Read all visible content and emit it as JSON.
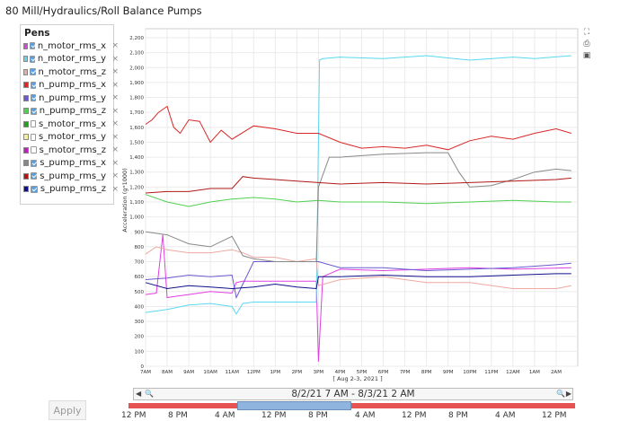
{
  "page": {
    "title": "80 Mill/Hydraulics/Roll Balance Pumps"
  },
  "pens": {
    "title": "Pens",
    "items": [
      {
        "name": "n_motor_rms_x",
        "color": "#e040e0",
        "checked": true
      },
      {
        "name": "n_motor_rms_y",
        "color": "#5ad8f0",
        "checked": true
      },
      {
        "name": "n_motor_rms_z",
        "color": "#f0a8a0",
        "checked": true
      },
      {
        "name": "n_pump_rms_x",
        "color": "#d82828",
        "checked": true
      },
      {
        "name": "n_pump_rms_y",
        "color": "#6a5ad0",
        "checked": true
      },
      {
        "name": "n_pump_rms_z",
        "color": "#50d050",
        "checked": true
      },
      {
        "name": "s_motor_rms_x",
        "color": "#22a022",
        "checked": false
      },
      {
        "name": "s_motor_rms_y",
        "color": "#f0f0a0",
        "checked": false
      },
      {
        "name": "s_motor_rms_z",
        "color": "#c020c0",
        "checked": false
      },
      {
        "name": "s_pump_rms_x",
        "color": "#888888",
        "checked": true
      },
      {
        "name": "s_pump_rms_y",
        "color": "#b01818",
        "checked": true
      },
      {
        "name": "s_pump_rms_z",
        "color": "#10108a",
        "checked": true
      }
    ],
    "remove_icon": "×"
  },
  "toolbar": {
    "icons": [
      "fullscreen-icon",
      "print-icon",
      "save-icon"
    ]
  },
  "chart_data": {
    "type": "line",
    "ylabel": "Acceleration (g*1000)",
    "xlabel": "[ Aug 2-3, 2021 ]",
    "ylim": [
      0,
      2200
    ],
    "yticks": [
      0,
      100,
      200,
      300,
      400,
      500,
      600,
      700,
      800,
      900,
      1000,
      1100,
      1200,
      1300,
      1400,
      1500,
      1600,
      1700,
      1800,
      1900,
      2000,
      2100,
      2200
    ],
    "ytick_labels": [
      "0",
      "100",
      "200",
      "300",
      "400",
      "500",
      "600",
      "700",
      "800",
      "900",
      "1,000",
      "1,100",
      "1,200",
      "1,300",
      "1,400",
      "1,500",
      "1,600",
      "1,700",
      "1,800",
      "1,900",
      "2,000",
      "2,100",
      "2,200"
    ],
    "xticks": [
      "7AM",
      "8AM",
      "9AM",
      "10AM",
      "11AM",
      "12PM",
      "1PM",
      "2PM",
      "3PM",
      "4PM",
      "5PM",
      "6PM",
      "7PM",
      "8PM",
      "9PM",
      "10PM",
      "11PM",
      "12AM",
      "1AM",
      "2AM"
    ],
    "xlim_hours": [
      7,
      27
    ],
    "grid": true,
    "series": [
      {
        "name": "n_motor_rms_x",
        "color": "#e040e0",
        "x": [
          7,
          7.5,
          7.8,
          8,
          8.5,
          9,
          10,
          11,
          11.2,
          11.5,
          12,
          13,
          14,
          14.9,
          15,
          15.2,
          16,
          18,
          20,
          22,
          24,
          26.7
        ],
        "values": [
          480,
          490,
          880,
          460,
          470,
          480,
          500,
          490,
          560,
          570,
          570,
          570,
          570,
          570,
          30,
          600,
          650,
          640,
          650,
          660,
          650,
          660
        ]
      },
      {
        "name": "n_motor_rms_y",
        "color": "#5ad8f0",
        "x": [
          7,
          8,
          9,
          10,
          11,
          11.2,
          11.5,
          12,
          13,
          14,
          14.9,
          15.05,
          15.2,
          16,
          18,
          20,
          22,
          24,
          25,
          26.7
        ],
        "values": [
          360,
          380,
          410,
          420,
          400,
          350,
          420,
          430,
          430,
          430,
          430,
          2050,
          2060,
          2070,
          2060,
          2080,
          2050,
          2070,
          2060,
          2080
        ]
      },
      {
        "name": "n_motor_rms_z",
        "color": "#f0a8a0",
        "x": [
          7,
          7.5,
          8,
          9,
          10,
          11,
          11.5,
          12,
          13,
          14,
          14.9,
          15,
          16,
          18,
          20,
          22,
          24,
          26,
          26.7
        ],
        "values": [
          750,
          800,
          780,
          760,
          760,
          780,
          760,
          730,
          730,
          700,
          720,
          540,
          580,
          600,
          560,
          560,
          520,
          520,
          540
        ]
      },
      {
        "name": "n_pump_rms_x",
        "color": "#d82828",
        "x": [
          7,
          7.3,
          7.6,
          8,
          8.3,
          8.6,
          9,
          9.5,
          10,
          10.5,
          11,
          12,
          13,
          14,
          15,
          16,
          17,
          18,
          19,
          20,
          21,
          22,
          23,
          24,
          25,
          26,
          26.7
        ],
        "values": [
          1620,
          1650,
          1700,
          1740,
          1600,
          1560,
          1650,
          1640,
          1500,
          1580,
          1520,
          1610,
          1590,
          1560,
          1560,
          1500,
          1460,
          1470,
          1460,
          1480,
          1450,
          1510,
          1540,
          1520,
          1560,
          1590,
          1560
        ]
      },
      {
        "name": "n_pump_rms_y",
        "color": "#6a5ad0",
        "x": [
          7,
          8,
          9,
          10,
          11,
          11.2,
          12,
          13,
          14,
          15,
          16,
          18,
          20,
          22,
          24,
          26,
          26.7
        ],
        "values": [
          580,
          590,
          610,
          600,
          610,
          460,
          700,
          700,
          700,
          700,
          660,
          660,
          640,
          650,
          660,
          680,
          690
        ]
      },
      {
        "name": "n_pump_rms_z",
        "color": "#50d050",
        "x": [
          7,
          8,
          9,
          10,
          11,
          12,
          13,
          14,
          15,
          16,
          18,
          20,
          22,
          24,
          26,
          26.7
        ],
        "values": [
          1150,
          1100,
          1070,
          1100,
          1120,
          1130,
          1120,
          1100,
          1110,
          1100,
          1100,
          1090,
          1100,
          1110,
          1100,
          1100
        ]
      },
      {
        "name": "s_pump_rms_x",
        "color": "#888888",
        "x": [
          7,
          8,
          9,
          10,
          11,
          11.5,
          12,
          13,
          14,
          14.9,
          15,
          15.5,
          16,
          18,
          20,
          21,
          21.5,
          22,
          23,
          24,
          25,
          26,
          26.7
        ],
        "values": [
          900,
          880,
          820,
          800,
          870,
          740,
          720,
          700,
          700,
          700,
          1200,
          1400,
          1400,
          1420,
          1430,
          1430,
          1300,
          1200,
          1210,
          1250,
          1300,
          1320,
          1310
        ]
      },
      {
        "name": "s_pump_rms_y",
        "color": "#b01818",
        "x": [
          7,
          8,
          9,
          10,
          11,
          11.5,
          12,
          13,
          14,
          15,
          16,
          18,
          20,
          22,
          24,
          26,
          26.7
        ],
        "values": [
          1160,
          1170,
          1170,
          1190,
          1190,
          1270,
          1260,
          1250,
          1240,
          1230,
          1220,
          1230,
          1220,
          1230,
          1240,
          1250,
          1260
        ]
      },
      {
        "name": "s_pump_rms_z",
        "color": "#10108a",
        "x": [
          7,
          8,
          9,
          10,
          11,
          12,
          13,
          14,
          14.9,
          15,
          16,
          18,
          20,
          22,
          24,
          26,
          26.7
        ],
        "values": [
          560,
          520,
          540,
          530,
          520,
          530,
          550,
          530,
          520,
          600,
          600,
          610,
          600,
          600,
          610,
          620,
          620
        ]
      }
    ]
  },
  "range": {
    "label": "8/2/21 7 AM - 8/3/21 2 AM",
    "left_arrow": "◀",
    "right_arrow": "▶",
    "ticks": [
      "12 PM",
      "8 PM",
      "4 AM",
      "12 PM",
      "8 PM",
      "4 AM",
      "12 PM",
      "8 PM",
      "4 AM",
      "12 PM"
    ]
  },
  "apply_button": {
    "label": "Apply"
  }
}
